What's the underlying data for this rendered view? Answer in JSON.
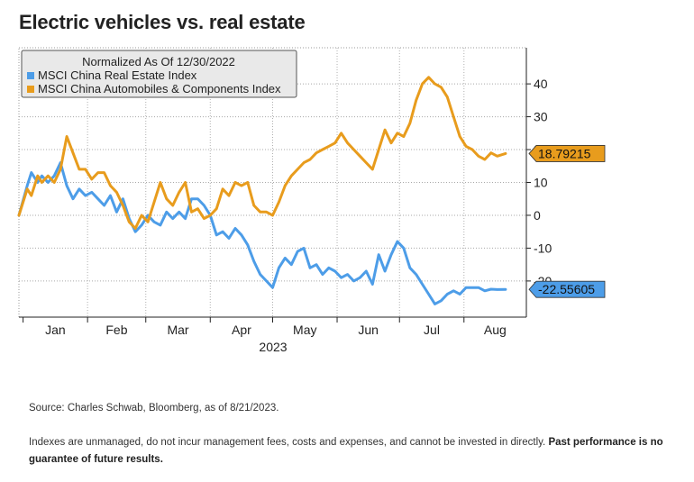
{
  "title": "Electric vehicles vs. real estate",
  "chart_data": {
    "type": "line",
    "legend_title": "Normalized As Of 12/30/2022",
    "legend_position": "top-left",
    "x_ticks": [
      "Jan",
      "Feb",
      "Mar",
      "Apr",
      "May",
      "Jun",
      "Jul",
      "Aug"
    ],
    "x_year_label": "2023",
    "y_ticks": [
      "40",
      "30",
      "20",
      "10",
      "0",
      "-10",
      "-20"
    ],
    "ylim": [
      -31,
      51
    ],
    "grid": true,
    "series": [
      {
        "name": "MSCI China Real Estate Index",
        "color": "#4d9de8",
        "last_value_label": "-22.55605",
        "x": [
          "2022-12-30",
          "2023-01-03",
          "2023-01-05",
          "2023-01-08",
          "2023-01-10",
          "2023-01-13",
          "2023-01-16",
          "2023-01-19",
          "2023-01-22",
          "2023-01-25",
          "2023-01-28",
          "2023-01-31",
          "2023-02-03",
          "2023-02-06",
          "2023-02-09",
          "2023-02-12",
          "2023-02-15",
          "2023-02-18",
          "2023-02-21",
          "2023-02-24",
          "2023-02-27",
          "2023-03-02",
          "2023-03-05",
          "2023-03-08",
          "2023-03-11",
          "2023-03-14",
          "2023-03-17",
          "2023-03-20",
          "2023-03-23",
          "2023-03-26",
          "2023-03-29",
          "2023-04-01",
          "2023-04-04",
          "2023-04-07",
          "2023-04-10",
          "2023-04-13",
          "2023-04-16",
          "2023-04-19",
          "2023-04-22",
          "2023-04-25",
          "2023-04-28",
          "2023-05-01",
          "2023-05-04",
          "2023-05-07",
          "2023-05-10",
          "2023-05-13",
          "2023-05-16",
          "2023-05-19",
          "2023-05-22",
          "2023-05-25",
          "2023-05-28",
          "2023-05-31",
          "2023-06-03",
          "2023-06-06",
          "2023-06-09",
          "2023-06-12",
          "2023-06-15",
          "2023-06-18",
          "2023-06-21",
          "2023-06-24",
          "2023-06-27",
          "2023-06-30",
          "2023-07-03",
          "2023-07-06",
          "2023-07-09",
          "2023-07-12",
          "2023-07-15",
          "2023-07-18",
          "2023-07-21",
          "2023-07-24",
          "2023-07-27",
          "2023-07-30",
          "2023-08-02",
          "2023-08-05",
          "2023-08-08",
          "2023-08-11",
          "2023-08-14",
          "2023-08-17",
          "2023-08-21"
        ],
        "values": [
          0,
          9,
          13,
          10,
          12,
          10,
          12,
          16,
          9,
          5,
          8,
          6,
          7,
          5,
          3,
          6,
          1,
          5,
          -1,
          -5,
          -3,
          0,
          -2,
          -3,
          1,
          -1,
          1,
          -1,
          5,
          5,
          3,
          0,
          -6,
          -5,
          -7,
          -4,
          -6,
          -9,
          -14,
          -18,
          -20,
          -22,
          -16,
          -13,
          -15,
          -11,
          -10,
          -16,
          -15,
          -18,
          -16,
          -17,
          -19,
          -18,
          -20,
          -19,
          -17,
          -21,
          -12,
          -17,
          -12,
          -8,
          -10,
          -16,
          -18,
          -21,
          -24,
          -27,
          -26,
          -24,
          -23,
          -24,
          -22,
          -22,
          -22,
          -23,
          -22.5,
          -22.6,
          -22.55605
        ]
      },
      {
        "name": "MSCI China Automobiles & Components Index",
        "color": "#e89c1d",
        "last_value_label": "18.79215",
        "x": [
          "2022-12-30",
          "2023-01-03",
          "2023-01-05",
          "2023-01-08",
          "2023-01-10",
          "2023-01-13",
          "2023-01-16",
          "2023-01-19",
          "2023-01-22",
          "2023-01-25",
          "2023-01-28",
          "2023-01-31",
          "2023-02-03",
          "2023-02-06",
          "2023-02-09",
          "2023-02-12",
          "2023-02-15",
          "2023-02-18",
          "2023-02-21",
          "2023-02-24",
          "2023-02-27",
          "2023-03-02",
          "2023-03-05",
          "2023-03-08",
          "2023-03-11",
          "2023-03-14",
          "2023-03-17",
          "2023-03-20",
          "2023-03-23",
          "2023-03-26",
          "2023-03-29",
          "2023-04-01",
          "2023-04-04",
          "2023-04-07",
          "2023-04-10",
          "2023-04-13",
          "2023-04-16",
          "2023-04-19",
          "2023-04-22",
          "2023-04-25",
          "2023-04-28",
          "2023-05-01",
          "2023-05-04",
          "2023-05-07",
          "2023-05-10",
          "2023-05-13",
          "2023-05-16",
          "2023-05-19",
          "2023-05-22",
          "2023-05-25",
          "2023-05-28",
          "2023-05-31",
          "2023-06-03",
          "2023-06-06",
          "2023-06-09",
          "2023-06-12",
          "2023-06-15",
          "2023-06-18",
          "2023-06-21",
          "2023-06-24",
          "2023-06-27",
          "2023-06-30",
          "2023-07-03",
          "2023-07-06",
          "2023-07-09",
          "2023-07-12",
          "2023-07-15",
          "2023-07-18",
          "2023-07-21",
          "2023-07-24",
          "2023-07-27",
          "2023-07-30",
          "2023-08-02",
          "2023-08-05",
          "2023-08-08",
          "2023-08-11",
          "2023-08-14",
          "2023-08-17",
          "2023-08-21"
        ],
        "values": [
          0,
          8,
          6,
          12,
          10,
          12,
          10,
          14,
          24,
          19,
          14,
          14,
          11,
          13,
          13,
          9,
          7,
          3,
          -2,
          -4,
          0,
          -2,
          4,
          10,
          5,
          3,
          7,
          10,
          1,
          2,
          -1,
          0,
          2,
          8,
          6,
          10,
          9,
          10,
          3,
          1,
          1,
          0,
          4,
          9,
          12,
          14,
          16,
          17,
          19,
          20,
          21,
          22,
          25,
          22,
          20,
          18,
          16,
          14,
          20,
          26,
          22,
          25,
          24,
          28,
          35,
          40,
          42,
          40,
          39,
          36,
          30,
          24,
          21,
          20,
          18,
          17,
          19,
          18,
          18.79215
        ]
      }
    ]
  },
  "source": "Source: Charles Schwab, Bloomberg, as of 8/21/2023.",
  "disclaimer": "Indexes are unmanaged, do not incur management fees, costs and expenses, and cannot be invested in directly.",
  "disclaimer_bold": "Past performance is no guarantee of future results."
}
